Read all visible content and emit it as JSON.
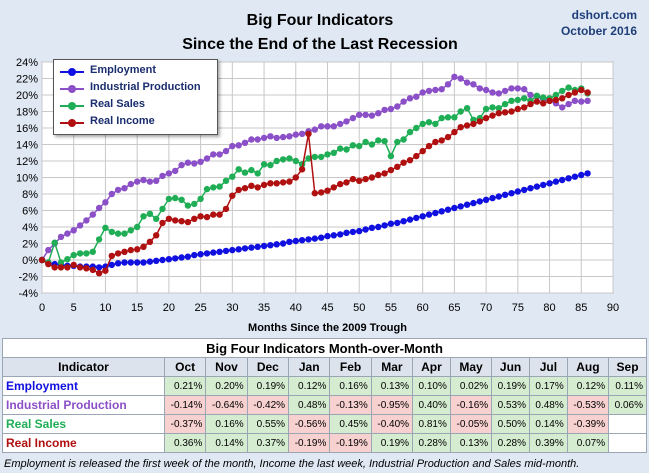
{
  "header": {
    "title_line1": "Big Four Indicators",
    "title_line2": "Since the End of the Last Recession",
    "source": "dshort.com",
    "date": "October 2016"
  },
  "chart_data": {
    "type": "line",
    "title": "Big Four Indicators Since the End of the Last Recession",
    "xlabel": "Months Since the 2009 Trough",
    "ylabel": "",
    "xlim": [
      0,
      90
    ],
    "ylim": [
      -4,
      24
    ],
    "x_ticks": [
      "0",
      "5",
      "10",
      "15",
      "20",
      "25",
      "30",
      "35",
      "40",
      "45",
      "50",
      "55",
      "60",
      "65",
      "70",
      "75",
      "80",
      "85",
      "90"
    ],
    "y_ticks": [
      "-4%",
      "-2%",
      "0%",
      "2%",
      "4%",
      "6%",
      "8%",
      "10%",
      "12%",
      "14%",
      "16%",
      "18%",
      "20%",
      "22%",
      "24%"
    ],
    "legend_position": "top-left",
    "series": [
      {
        "name": "Employment",
        "color": "#1010e0",
        "values": [
          0,
          -0.3,
          -0.5,
          -0.6,
          -0.7,
          -0.7,
          -0.8,
          -0.8,
          -0.8,
          -0.9,
          -0.8,
          -0.6,
          -0.4,
          -0.3,
          -0.3,
          -0.3,
          -0.3,
          -0.2,
          -0.1,
          0,
          0.1,
          0.2,
          0.3,
          0.4,
          0.6,
          0.7,
          0.8,
          0.9,
          1.0,
          1.1,
          1.2,
          1.3,
          1.4,
          1.5,
          1.6,
          1.7,
          1.8,
          1.9,
          2.0,
          2.2,
          2.3,
          2.4,
          2.5,
          2.6,
          2.7,
          2.9,
          3.0,
          3.1,
          3.3,
          3.4,
          3.5,
          3.7,
          3.9,
          4.0,
          4.2,
          4.4,
          4.5,
          4.7,
          4.9,
          5.1,
          5.3,
          5.5,
          5.7,
          5.9,
          6.1,
          6.3,
          6.5,
          6.7,
          6.9,
          7.1,
          7.3,
          7.5,
          7.7,
          7.9,
          8.1,
          8.3,
          8.5,
          8.7,
          8.9,
          9.1,
          9.3,
          9.5,
          9.7,
          9.9,
          10.1,
          10.3,
          10.5
        ]
      },
      {
        "name": "Industrial Production",
        "color": "#8b4fc8",
        "values": [
          0,
          1.2,
          2.0,
          2.8,
          3.2,
          3.6,
          4.2,
          4.8,
          5.5,
          6.3,
          7.0,
          8.0,
          8.5,
          8.7,
          9.2,
          9.5,
          9.7,
          9.5,
          9.6,
          10.2,
          10.5,
          10.8,
          11.5,
          11.8,
          11.7,
          11.9,
          12.3,
          12.8,
          12.8,
          13.2,
          13.8,
          13.9,
          14.2,
          14.6,
          14.6,
          14.8,
          15.0,
          14.8,
          14.9,
          15.0,
          15.2,
          15.3,
          15.6,
          15.8,
          16.2,
          16.2,
          16.2,
          16.5,
          16.8,
          17.2,
          17.6,
          17.6,
          17.5,
          17.8,
          18.2,
          18.3,
          18.6,
          19.2,
          19.6,
          19.8,
          20.3,
          20.5,
          20.6,
          20.7,
          21.3,
          22.2,
          22.0,
          21.5,
          21.3,
          20.8,
          20.6,
          20.3,
          20.2,
          20.5,
          20.8,
          20.8,
          20.7,
          20.0,
          19.8,
          19.5,
          19.3,
          19.0,
          18.5,
          18.9,
          19.3,
          19.2,
          19.3
        ]
      },
      {
        "name": "Real Sales",
        "color": "#1fae55",
        "values": [
          0,
          -0.3,
          2.1,
          -0.3,
          0.1,
          0.6,
          0.8,
          0.8,
          1.0,
          2.5,
          3.9,
          3.4,
          3.2,
          3.2,
          3.6,
          4.0,
          5.3,
          5.6,
          5.0,
          6.2,
          7.4,
          7.5,
          7.3,
          6.6,
          6.8,
          7.4,
          8.6,
          8.8,
          8.9,
          9.6,
          10.1,
          11.0,
          10.6,
          10.9,
          10.5,
          11.6,
          11.5,
          12.0,
          12.2,
          12.3,
          12.0,
          11.6,
          12.3,
          12.5,
          12.5,
          12.8,
          13.0,
          13.5,
          13.4,
          13.9,
          13.8,
          14.3,
          14.0,
          14.5,
          14.4,
          12.6,
          14.3,
          14.6,
          15.5,
          16.0,
          16.5,
          16.7,
          16.5,
          17.2,
          17.3,
          17.3,
          18.0,
          18.4,
          17.0,
          17.2,
          18.3,
          18.5,
          18.4,
          18.9,
          19.3,
          19.4,
          19.6,
          19.3,
          19.9,
          19.7,
          19.6,
          20.0,
          20.5,
          20.9,
          20.6,
          20.8,
          20.2
        ]
      },
      {
        "name": "Real Income",
        "color": "#b01010",
        "values": [
          0,
          -0.5,
          -0.9,
          -0.9,
          -0.9,
          -0.6,
          -0.9,
          -1.0,
          -1.2,
          -1.6,
          -1.3,
          0.5,
          0.8,
          1.0,
          1.2,
          1.3,
          1.6,
          2.2,
          3.0,
          4.5,
          5.0,
          4.8,
          4.7,
          4.6,
          5.0,
          5.3,
          5.2,
          5.5,
          5.5,
          6.2,
          7.8,
          8.5,
          8.7,
          9.0,
          8.8,
          9.1,
          9.3,
          9.3,
          9.4,
          9.5,
          10.0,
          11.0,
          15.3,
          8.1,
          8.2,
          8.4,
          8.8,
          9.2,
          9.4,
          9.8,
          9.6,
          9.8,
          10.0,
          10.3,
          10.5,
          10.9,
          11.3,
          11.8,
          12.1,
          12.6,
          13.2,
          13.8,
          14.3,
          14.5,
          14.9,
          15.5,
          16.1,
          16.3,
          16.5,
          16.8,
          17.2,
          17.5,
          17.8,
          17.9,
          18.0,
          18.3,
          18.5,
          18.9,
          19.2,
          19.0,
          19.3,
          19.4,
          19.6,
          20.0,
          20.3,
          20.6,
          20.3
        ]
      }
    ]
  },
  "table": {
    "title": "Big Four Indicators Month-over-Month",
    "header_label": "Indicator",
    "months": [
      "Oct",
      "Nov",
      "Dec",
      "Jan",
      "Feb",
      "Mar",
      "Apr",
      "May",
      "Jun",
      "Jul",
      "Aug",
      "Sep"
    ],
    "rows": [
      {
        "name": "Employment",
        "color": "#1010e0",
        "values": [
          "0.21%",
          "0.20%",
          "0.19%",
          "0.12%",
          "0.16%",
          "0.13%",
          "0.10%",
          "0.02%",
          "0.19%",
          "0.17%",
          "0.12%",
          "0.11%"
        ]
      },
      {
        "name": "Industrial Production",
        "color": "#8b4fc8",
        "values": [
          "-0.14%",
          "-0.64%",
          "-0.42%",
          "0.48%",
          "-0.13%",
          "-0.95%",
          "0.40%",
          "-0.16%",
          "0.53%",
          "0.48%",
          "-0.53%",
          "0.06%"
        ]
      },
      {
        "name": "Real Sales",
        "color": "#1fae55",
        "values": [
          "-0.37%",
          "0.16%",
          "0.55%",
          "-0.56%",
          "0.45%",
          "-0.40%",
          "0.81%",
          "-0.05%",
          "0.50%",
          "0.14%",
          "-0.39%",
          ""
        ]
      },
      {
        "name": "Real Income",
        "color": "#b01010",
        "values": [
          "0.36%",
          "0.14%",
          "0.37%",
          "-0.19%",
          "-0.19%",
          "0.19%",
          "0.28%",
          "0.13%",
          "0.28%",
          "0.39%",
          "0.07%",
          ""
        ]
      }
    ]
  },
  "footnote": "Employment is released the first week of the month, Income the last week, Industrial Production and Sales mid-month."
}
